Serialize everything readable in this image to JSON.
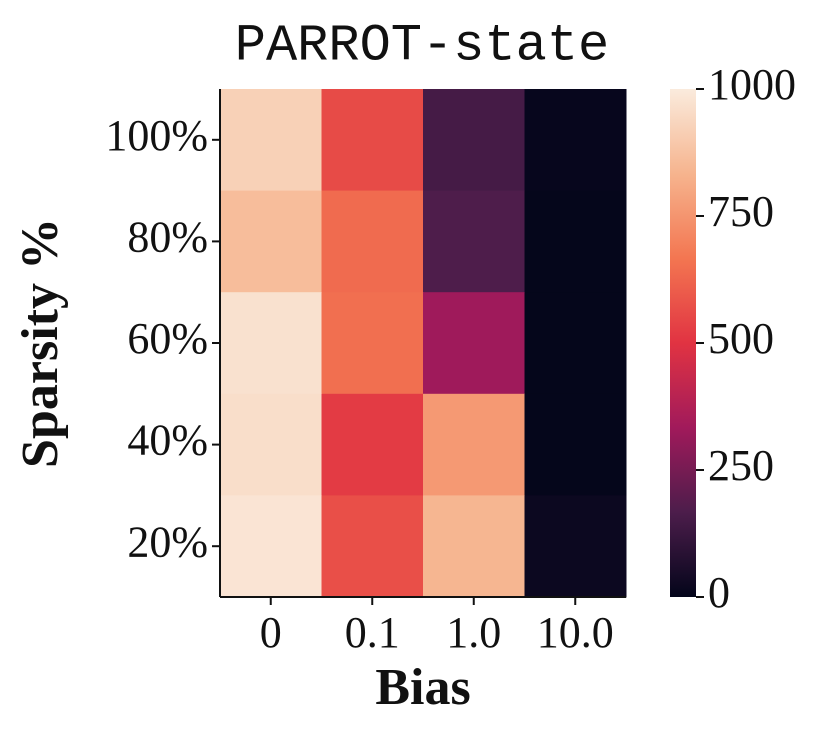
{
  "chart_data": {
    "type": "heatmap",
    "title": "PARROT-state",
    "x_label": "Bias",
    "y_label": "Sparsity %",
    "categories": [
      "0",
      "0.1",
      "1.0",
      "10.0"
    ],
    "y_categories": [
      "100%",
      "80%",
      "60%",
      "40%",
      "20%"
    ],
    "values": [
      [
        920,
        560,
        150,
        10
      ],
      [
        860,
        640,
        170,
        5
      ],
      [
        970,
        650,
        330,
        5
      ],
      [
        960,
        520,
        760,
        5
      ],
      [
        980,
        570,
        840,
        20
      ]
    ],
    "clim": [
      0,
      1000
    ],
    "cticks": [
      0,
      250,
      500,
      750,
      1000
    ],
    "colormap": [
      "#03051a",
      "#4c1d4b",
      "#a11a5b",
      "#e13342",
      "#f37651",
      "#f6b48e",
      "#faebdd"
    ]
  }
}
